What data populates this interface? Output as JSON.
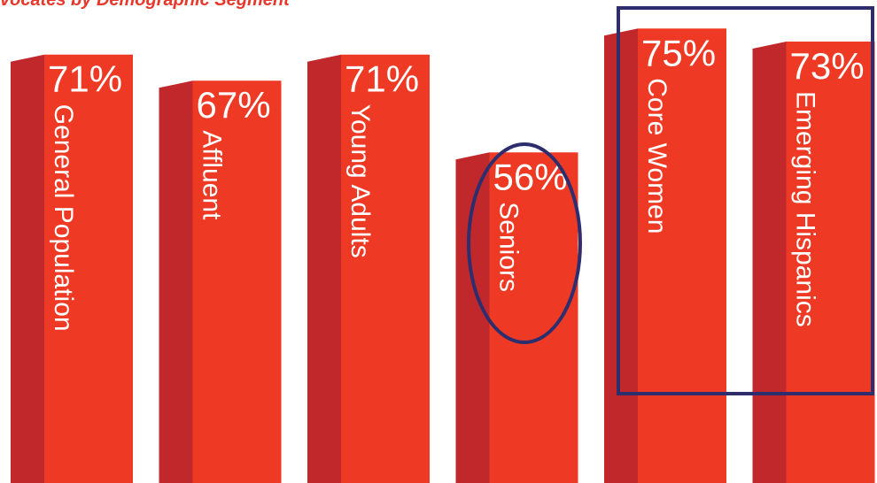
{
  "chart_data": {
    "type": "bar",
    "title": "vocates by Demographic Segment",
    "categories": [
      "General Population",
      "Affluent",
      "Young Adults",
      "Seniors",
      "Core Women",
      "Emerging Hispanics"
    ],
    "values": [
      71,
      67,
      71,
      56,
      75,
      73
    ],
    "value_labels": [
      "71%",
      "67%",
      "71%",
      "56%",
      "75%",
      "73%"
    ],
    "color": "#ee3a24",
    "side_color": "#c0282b"
  }
}
